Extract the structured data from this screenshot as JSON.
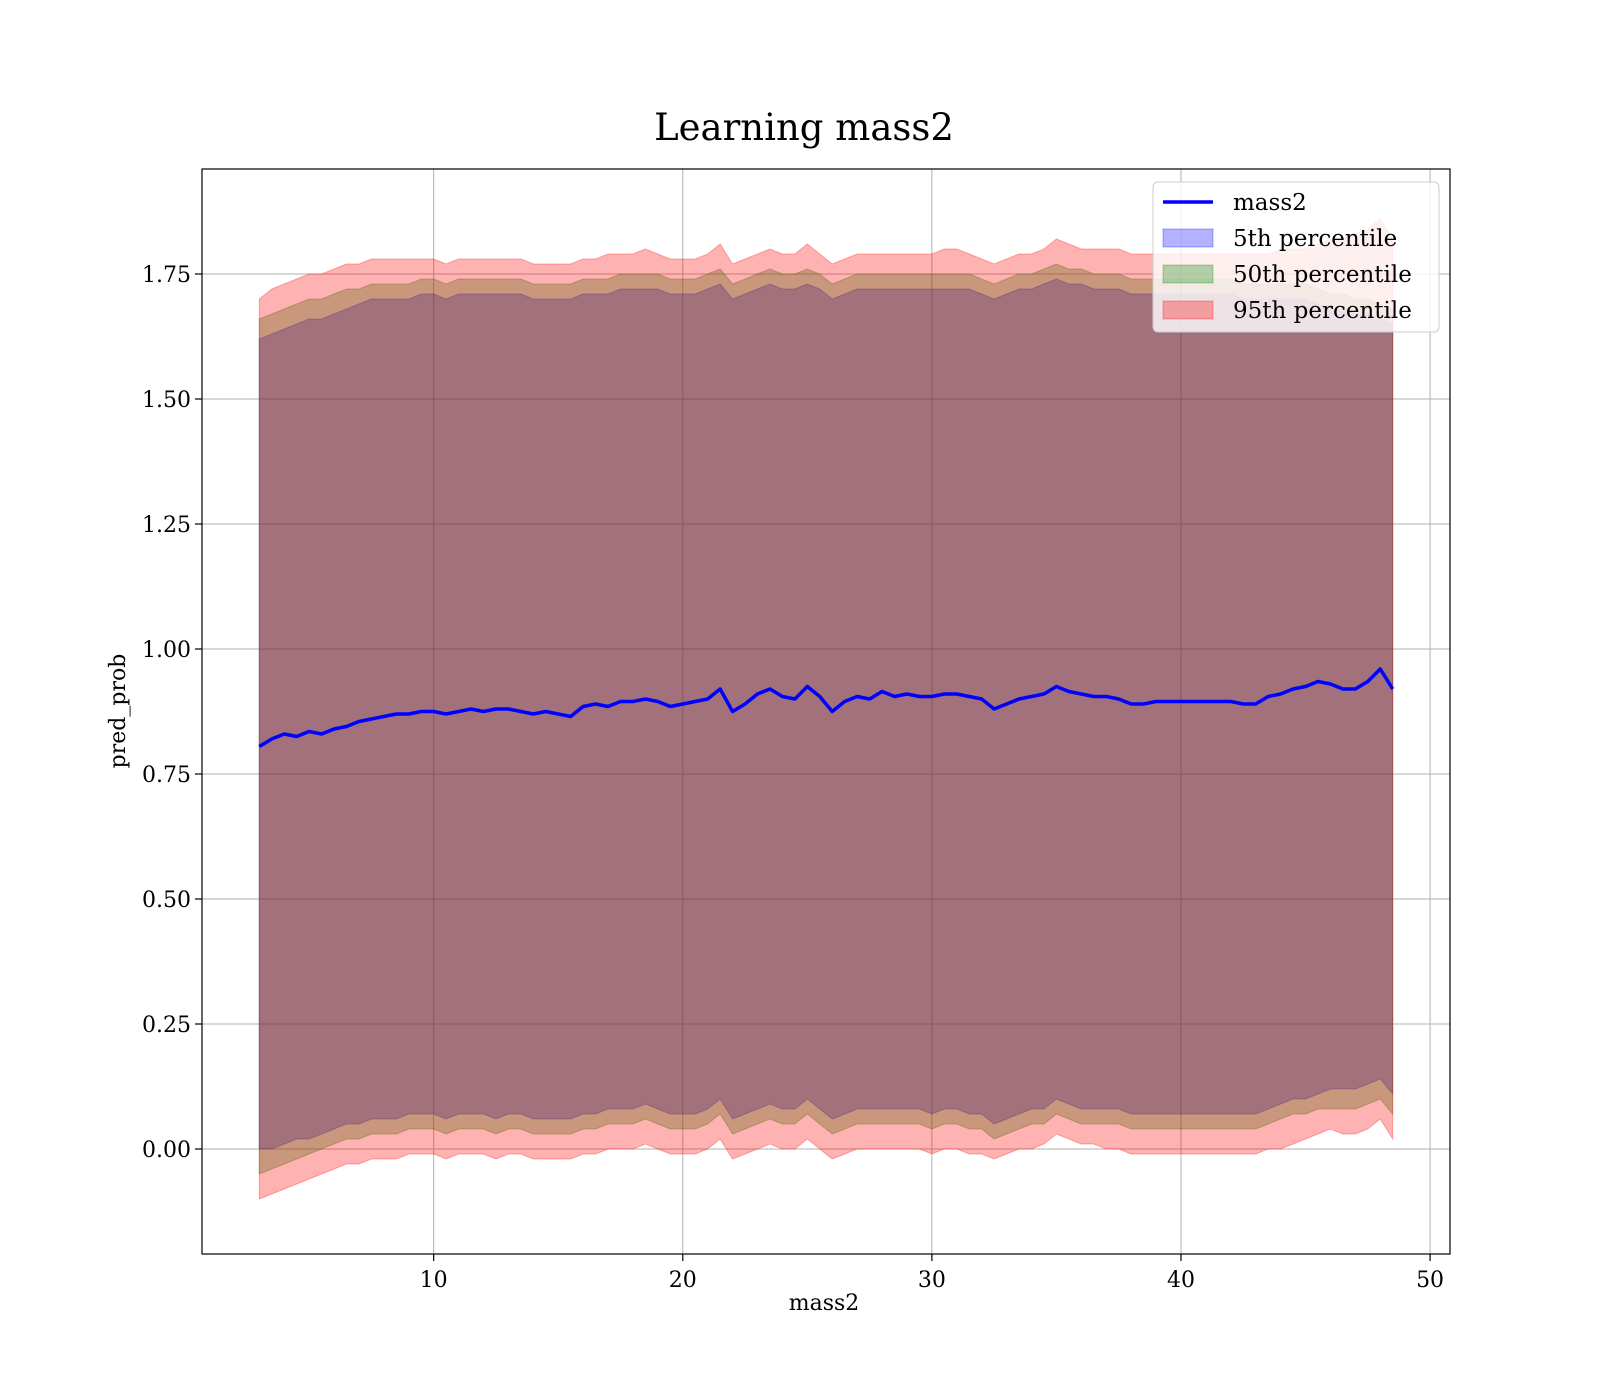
{
  "chart_data": {
    "type": "line",
    "title": "Learning mass2",
    "xlabel": "mass2",
    "ylabel": "pred_prob",
    "xlim": [
      0.7,
      50.8
    ],
    "ylim": [
      -0.21,
      1.96
    ],
    "xticks": [
      10,
      20,
      30,
      40,
      50
    ],
    "yticks": [
      0.0,
      0.25,
      0.5,
      0.75,
      1.0,
      1.25,
      1.5,
      1.75
    ],
    "xtick_labels": [
      "10",
      "20",
      "30",
      "40",
      "50"
    ],
    "ytick_labels": [
      "0.00",
      "0.25",
      "0.50",
      "0.75",
      "1.00",
      "1.25",
      "1.50",
      "1.75"
    ],
    "grid": true,
    "legend_position": "top-right",
    "x": [
      3.0,
      3.5,
      4.0,
      4.5,
      5.0,
      5.5,
      6.0,
      6.5,
      7.0,
      7.5,
      8.0,
      8.5,
      9.0,
      9.5,
      10.0,
      10.5,
      11.0,
      11.5,
      12.0,
      12.5,
      13.0,
      13.5,
      14.0,
      14.5,
      15.0,
      15.5,
      16.0,
      16.5,
      17.0,
      17.5,
      18.0,
      18.5,
      19.0,
      19.5,
      20.0,
      20.5,
      21.0,
      21.5,
      22.0,
      22.5,
      23.0,
      23.5,
      24.0,
      24.5,
      25.0,
      25.5,
      26.0,
      26.5,
      27.0,
      27.5,
      28.0,
      28.5,
      29.0,
      29.5,
      30.0,
      30.5,
      31.0,
      31.5,
      32.0,
      32.5,
      33.0,
      33.5,
      34.0,
      34.5,
      35.0,
      35.5,
      36.0,
      36.5,
      37.0,
      37.5,
      38.0,
      38.5,
      39.0,
      39.5,
      40.0,
      40.5,
      41.0,
      41.5,
      42.0,
      42.5,
      43.0,
      43.5,
      44.0,
      44.5,
      45.0,
      45.5,
      46.0,
      46.5,
      47.0,
      47.5,
      48.0,
      48.5
    ],
    "series": [
      {
        "name": "mass2",
        "color": "#0000ff",
        "kind": "line",
        "values": [
          0.805,
          0.82,
          0.83,
          0.825,
          0.835,
          0.83,
          0.84,
          0.845,
          0.855,
          0.86,
          0.865,
          0.87,
          0.87,
          0.875,
          0.875,
          0.87,
          0.875,
          0.88,
          0.875,
          0.88,
          0.88,
          0.875,
          0.87,
          0.875,
          0.87,
          0.865,
          0.885,
          0.89,
          0.885,
          0.895,
          0.895,
          0.9,
          0.895,
          0.885,
          0.89,
          0.895,
          0.9,
          0.92,
          0.875,
          0.89,
          0.91,
          0.92,
          0.905,
          0.9,
          0.925,
          0.905,
          0.875,
          0.895,
          0.905,
          0.9,
          0.915,
          0.905,
          0.91,
          0.905,
          0.905,
          0.91,
          0.91,
          0.905,
          0.9,
          0.88,
          0.89,
          0.9,
          0.905,
          0.91,
          0.925,
          0.915,
          0.91,
          0.905,
          0.905,
          0.9,
          0.89,
          0.89,
          0.895,
          0.895,
          0.895,
          0.895,
          0.895,
          0.895,
          0.895,
          0.89,
          0.89,
          0.905,
          0.91,
          0.92,
          0.925,
          0.935,
          0.93,
          0.92,
          0.92,
          0.935,
          0.96,
          0.92
        ]
      },
      {
        "name": "5th percentile",
        "color": "#0000ff",
        "kind": "band",
        "lower": [
          0.0,
          0.0,
          0.01,
          0.02,
          0.02,
          0.03,
          0.04,
          0.05,
          0.05,
          0.06,
          0.06,
          0.06,
          0.07,
          0.07,
          0.07,
          0.06,
          0.07,
          0.07,
          0.07,
          0.06,
          0.07,
          0.07,
          0.06,
          0.06,
          0.06,
          0.06,
          0.07,
          0.07,
          0.08,
          0.08,
          0.08,
          0.09,
          0.08,
          0.07,
          0.07,
          0.07,
          0.08,
          0.1,
          0.06,
          0.07,
          0.08,
          0.09,
          0.08,
          0.08,
          0.1,
          0.08,
          0.06,
          0.07,
          0.08,
          0.08,
          0.08,
          0.08,
          0.08,
          0.08,
          0.07,
          0.08,
          0.08,
          0.07,
          0.07,
          0.05,
          0.06,
          0.07,
          0.08,
          0.08,
          0.1,
          0.09,
          0.08,
          0.08,
          0.08,
          0.08,
          0.07,
          0.07,
          0.07,
          0.07,
          0.07,
          0.07,
          0.07,
          0.07,
          0.07,
          0.07,
          0.07,
          0.08,
          0.09,
          0.1,
          0.1,
          0.11,
          0.12,
          0.12,
          0.12,
          0.13,
          0.14,
          0.11
        ],
        "upper": [
          1.62,
          1.63,
          1.64,
          1.65,
          1.66,
          1.66,
          1.67,
          1.68,
          1.69,
          1.7,
          1.7,
          1.7,
          1.7,
          1.71,
          1.71,
          1.7,
          1.71,
          1.71,
          1.71,
          1.71,
          1.71,
          1.71,
          1.7,
          1.7,
          1.7,
          1.7,
          1.71,
          1.71,
          1.71,
          1.72,
          1.72,
          1.72,
          1.72,
          1.71,
          1.71,
          1.71,
          1.72,
          1.73,
          1.7,
          1.71,
          1.72,
          1.73,
          1.72,
          1.72,
          1.73,
          1.72,
          1.7,
          1.71,
          1.72,
          1.72,
          1.72,
          1.72,
          1.72,
          1.72,
          1.72,
          1.72,
          1.72,
          1.72,
          1.71,
          1.7,
          1.71,
          1.72,
          1.72,
          1.73,
          1.74,
          1.73,
          1.73,
          1.72,
          1.72,
          1.72,
          1.71,
          1.71,
          1.71,
          1.71,
          1.71,
          1.71,
          1.71,
          1.71,
          1.71,
          1.7,
          1.7,
          1.7,
          1.7,
          1.7,
          1.7,
          1.69,
          1.68,
          1.68,
          1.67,
          1.67,
          1.66,
          1.65
        ]
      },
      {
        "name": "50th percentile",
        "color": "#008000",
        "kind": "band",
        "lower": [
          -0.05,
          -0.04,
          -0.03,
          -0.02,
          -0.01,
          0.0,
          0.01,
          0.02,
          0.02,
          0.03,
          0.03,
          0.03,
          0.04,
          0.04,
          0.04,
          0.03,
          0.04,
          0.04,
          0.04,
          0.03,
          0.04,
          0.04,
          0.03,
          0.03,
          0.03,
          0.03,
          0.04,
          0.04,
          0.05,
          0.05,
          0.05,
          0.06,
          0.05,
          0.04,
          0.04,
          0.04,
          0.05,
          0.07,
          0.03,
          0.04,
          0.05,
          0.06,
          0.05,
          0.05,
          0.07,
          0.05,
          0.03,
          0.04,
          0.05,
          0.05,
          0.05,
          0.05,
          0.05,
          0.05,
          0.04,
          0.05,
          0.05,
          0.04,
          0.04,
          0.02,
          0.03,
          0.04,
          0.05,
          0.05,
          0.07,
          0.06,
          0.05,
          0.05,
          0.05,
          0.05,
          0.04,
          0.04,
          0.04,
          0.04,
          0.04,
          0.04,
          0.04,
          0.04,
          0.04,
          0.04,
          0.04,
          0.05,
          0.06,
          0.07,
          0.07,
          0.08,
          0.08,
          0.08,
          0.08,
          0.09,
          0.1,
          0.07
        ],
        "upper": [
          1.66,
          1.67,
          1.68,
          1.69,
          1.7,
          1.7,
          1.71,
          1.72,
          1.72,
          1.73,
          1.73,
          1.73,
          1.73,
          1.74,
          1.74,
          1.73,
          1.74,
          1.74,
          1.74,
          1.74,
          1.74,
          1.74,
          1.73,
          1.73,
          1.73,
          1.73,
          1.74,
          1.74,
          1.74,
          1.75,
          1.75,
          1.75,
          1.75,
          1.74,
          1.74,
          1.74,
          1.75,
          1.76,
          1.73,
          1.74,
          1.75,
          1.76,
          1.75,
          1.75,
          1.76,
          1.75,
          1.73,
          1.74,
          1.75,
          1.75,
          1.75,
          1.75,
          1.75,
          1.75,
          1.75,
          1.75,
          1.75,
          1.75,
          1.74,
          1.73,
          1.74,
          1.75,
          1.75,
          1.76,
          1.77,
          1.76,
          1.76,
          1.75,
          1.75,
          1.75,
          1.74,
          1.74,
          1.74,
          1.74,
          1.74,
          1.74,
          1.74,
          1.74,
          1.74,
          1.73,
          1.73,
          1.73,
          1.73,
          1.73,
          1.73,
          1.72,
          1.71,
          1.71,
          1.7,
          1.7,
          1.69,
          1.68
        ]
      },
      {
        "name": "95th percentile",
        "color": "#ff0000",
        "kind": "band",
        "lower": [
          -0.1,
          -0.09,
          -0.08,
          -0.07,
          -0.06,
          -0.05,
          -0.04,
          -0.03,
          -0.03,
          -0.02,
          -0.02,
          -0.02,
          -0.01,
          -0.01,
          -0.01,
          -0.02,
          -0.01,
          -0.01,
          -0.01,
          -0.02,
          -0.01,
          -0.01,
          -0.02,
          -0.02,
          -0.02,
          -0.02,
          -0.01,
          -0.01,
          0.0,
          0.0,
          0.0,
          0.01,
          0.0,
          -0.01,
          -0.01,
          -0.01,
          0.0,
          0.02,
          -0.02,
          -0.01,
          0.0,
          0.01,
          0.0,
          0.0,
          0.02,
          0.0,
          -0.02,
          -0.01,
          0.0,
          0.0,
          0.0,
          0.0,
          0.0,
          0.0,
          -0.01,
          0.0,
          0.0,
          -0.01,
          -0.01,
          -0.02,
          -0.01,
          0.0,
          0.0,
          0.01,
          0.03,
          0.02,
          0.01,
          0.01,
          0.0,
          0.0,
          -0.01,
          -0.01,
          -0.01,
          -0.01,
          -0.01,
          -0.01,
          -0.01,
          -0.01,
          -0.01,
          -0.01,
          -0.01,
          0.0,
          0.0,
          0.01,
          0.02,
          0.03,
          0.04,
          0.03,
          0.03,
          0.04,
          0.06,
          0.02
        ],
        "upper": [
          1.7,
          1.72,
          1.73,
          1.74,
          1.75,
          1.75,
          1.76,
          1.77,
          1.77,
          1.78,
          1.78,
          1.78,
          1.78,
          1.78,
          1.78,
          1.77,
          1.78,
          1.78,
          1.78,
          1.78,
          1.78,
          1.78,
          1.77,
          1.77,
          1.77,
          1.77,
          1.78,
          1.78,
          1.79,
          1.79,
          1.79,
          1.8,
          1.79,
          1.78,
          1.78,
          1.78,
          1.79,
          1.81,
          1.77,
          1.78,
          1.79,
          1.8,
          1.79,
          1.79,
          1.81,
          1.79,
          1.77,
          1.78,
          1.79,
          1.79,
          1.79,
          1.79,
          1.79,
          1.79,
          1.79,
          1.8,
          1.8,
          1.79,
          1.78,
          1.77,
          1.78,
          1.79,
          1.79,
          1.8,
          1.82,
          1.81,
          1.8,
          1.8,
          1.8,
          1.8,
          1.79,
          1.79,
          1.79,
          1.79,
          1.79,
          1.79,
          1.79,
          1.79,
          1.79,
          1.79,
          1.79,
          1.79,
          1.8,
          1.8,
          1.8,
          1.81,
          1.82,
          1.82,
          1.83,
          1.84,
          1.86,
          1.82
        ]
      }
    ]
  }
}
